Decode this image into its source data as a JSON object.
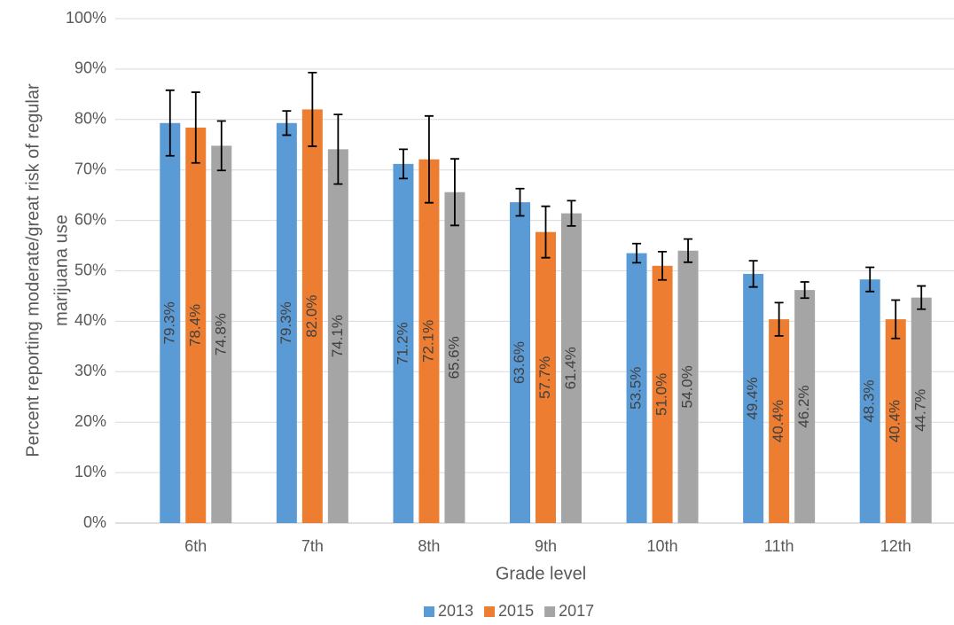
{
  "chart_data": {
    "type": "bar",
    "xlabel": "Grade level",
    "ylabel": [
      "Percent reporting moderate/great risk of regular",
      "marijuana use"
    ],
    "categories": [
      "6th",
      "7th",
      "8th",
      "9th",
      "10th",
      "11th",
      "12th"
    ],
    "series": [
      {
        "name": "2013",
        "color": "#5b9bd5",
        "values": [
          79.3,
          79.3,
          71.2,
          63.6,
          53.5,
          49.4,
          48.3
        ],
        "value_labels": [
          "79.3%",
          "79.3%",
          "71.2%",
          "63.6%",
          "53.5%",
          "49.4%",
          "48.3%"
        ],
        "errors": [
          6.5,
          2.4,
          2.9,
          2.7,
          1.9,
          2.6,
          2.4
        ]
      },
      {
        "name": "2015",
        "color": "#ed7d31",
        "values": [
          78.4,
          82.0,
          72.1,
          57.7,
          51.0,
          40.4,
          40.4
        ],
        "value_labels": [
          "78.4%",
          "82.0%",
          "72.1%",
          "57.7%",
          "51.0%",
          "40.4%",
          "40.4%"
        ],
        "errors": [
          7.0,
          7.3,
          8.6,
          5.1,
          2.8,
          3.3,
          3.8
        ]
      },
      {
        "name": "2017",
        "color": "#a5a5a5",
        "values": [
          74.8,
          74.1,
          65.6,
          61.4,
          54.0,
          46.2,
          44.7
        ],
        "value_labels": [
          "74.8%",
          "74.1%",
          "65.6%",
          "61.4%",
          "54.0%",
          "46.2%",
          "44.7%"
        ],
        "errors": [
          4.9,
          6.9,
          6.6,
          2.5,
          2.3,
          1.6,
          2.3
        ]
      }
    ],
    "ylim": [
      0,
      100
    ],
    "yticks": [
      {
        "value": 0,
        "label": "0%"
      },
      {
        "value": 10,
        "label": "10%"
      },
      {
        "value": 20,
        "label": "20%"
      },
      {
        "value": 30,
        "label": "30%"
      },
      {
        "value": 40,
        "label": "40%"
      },
      {
        "value": 50,
        "label": "50%"
      },
      {
        "value": 60,
        "label": "60%"
      },
      {
        "value": 70,
        "label": "70%"
      },
      {
        "value": 80,
        "label": "80%"
      },
      {
        "value": 90,
        "label": "90%"
      },
      {
        "value": 100,
        "label": "100%"
      }
    ],
    "grid": true,
    "legend": "bottom"
  }
}
